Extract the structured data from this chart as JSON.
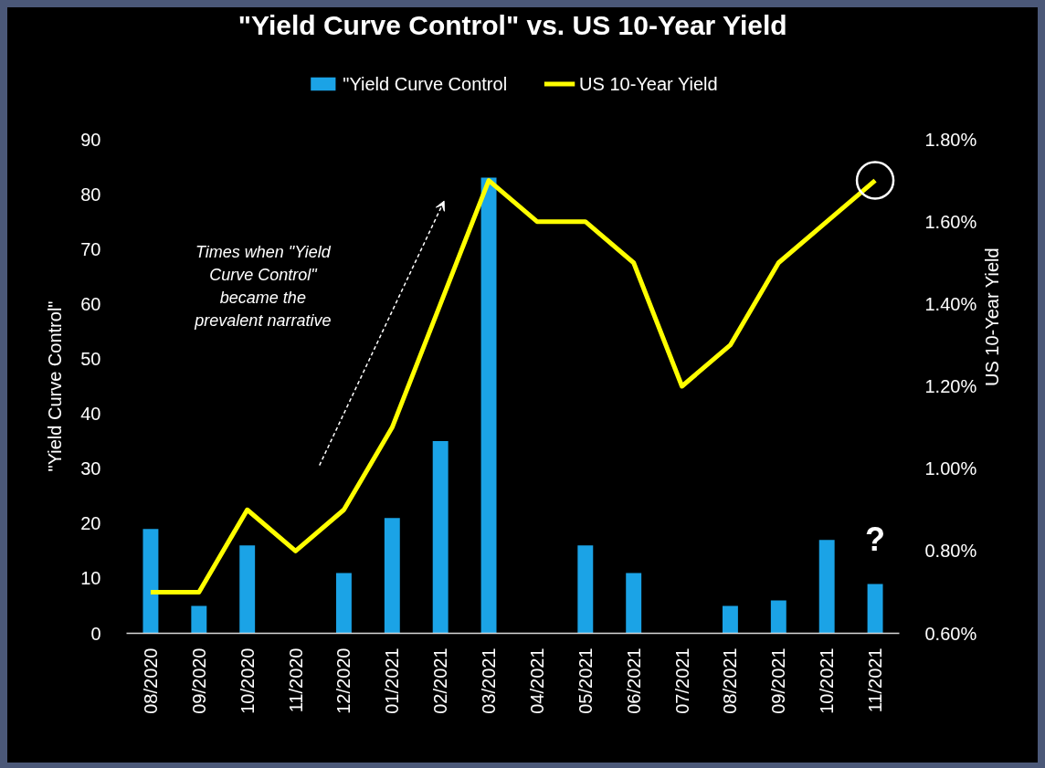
{
  "chart_data": {
    "type": "bar",
    "title": "\"Yield Curve Control\" vs. US 10-Year Yield",
    "ylabel": "\"Yield Curve Control\"",
    "y2label": "US 10-Year Yield",
    "categories": [
      "08/2020",
      "09/2020",
      "10/2020",
      "11/2020",
      "12/2020",
      "01/2021",
      "02/2021",
      "03/2021",
      "04/2021",
      "05/2021",
      "06/2021",
      "07/2021",
      "08/2021",
      "09/2021",
      "10/2021",
      "11/2021"
    ],
    "series": [
      {
        "name": "\"Yield Curve Control",
        "color": "#1ba3e6",
        "values": [
          19,
          5,
          16,
          0,
          11,
          21,
          35,
          83,
          0,
          16,
          11,
          0,
          5,
          6,
          17,
          9
        ]
      },
      {
        "name": "US 10-Year Yield",
        "type": "line",
        "axis": "y2",
        "color": "#ffff00",
        "values": [
          0.7,
          0.7,
          0.9,
          0.8,
          0.9,
          1.1,
          1.4,
          1.7,
          1.6,
          1.6,
          1.5,
          1.2,
          1.3,
          1.5,
          1.6,
          1.7
        ]
      }
    ],
    "ylim": [
      0,
      90
    ],
    "yticks": [
      0,
      10,
      20,
      30,
      40,
      50,
      60,
      70,
      80,
      90
    ],
    "y2lim": [
      0.6,
      1.8
    ],
    "y2ticks": [
      {
        "value": 0.6,
        "label": "0.60%"
      },
      {
        "value": 0.8,
        "label": "0.80%"
      },
      {
        "value": 1.0,
        "label": "1.00%"
      },
      {
        "value": 1.2,
        "label": "1.20%"
      },
      {
        "value": 1.4,
        "label": "1.40%"
      },
      {
        "value": 1.6,
        "label": "1.60%"
      },
      {
        "value": 1.8,
        "label": "1.80%"
      }
    ],
    "legend": "top",
    "annotations": [
      "Times when \"Yield Curve Control\" became the prevalent narrative",
      "?"
    ]
  }
}
